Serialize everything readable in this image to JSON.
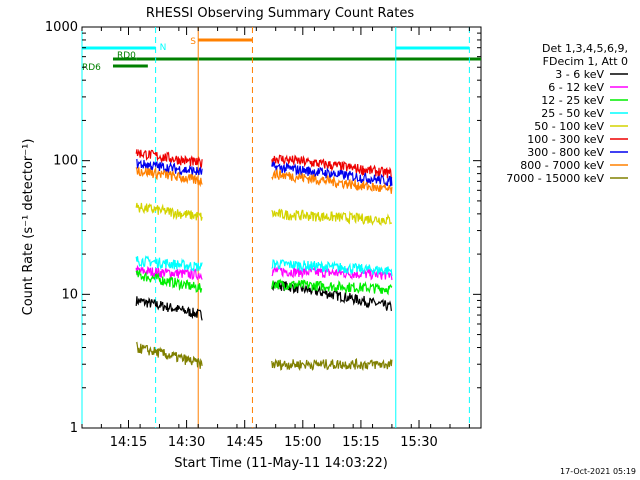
{
  "chart_data": {
    "type": "line",
    "title": "RHESSI Observing Summary Count Rates",
    "xlabel": "Start Time (11-May-11 14:03:22)",
    "ylabel": "Count Rate (s⁻¹ detector⁻¹)",
    "y_scale": "log",
    "ylim": [
      1,
      1000
    ],
    "xlim": [
      "14:03",
      "15:46"
    ],
    "y_ticks": [
      {
        "value": 1,
        "label": "1"
      },
      {
        "value": 10,
        "label": "10"
      },
      {
        "value": 100,
        "label": "100"
      },
      {
        "value": 1000,
        "label": "1000"
      }
    ],
    "x_ticks": [
      {
        "value": "14:15",
        "label": "14:15"
      },
      {
        "value": "14:30",
        "label": "14:30"
      },
      {
        "value": "14:45",
        "label": "14:45"
      },
      {
        "value": "15:00",
        "label": "15:00"
      },
      {
        "value": "15:15",
        "label": "15:15"
      },
      {
        "value": "15:30",
        "label": "15:30"
      }
    ],
    "legend": {
      "placement": "right",
      "header": [
        "Det 1,3,4,5,6,9,",
        "FDecim 1, Att 0"
      ],
      "entries": [
        {
          "label": "3 - 6 keV",
          "color": "#000000"
        },
        {
          "label": "6 - 12 keV",
          "color": "#ff00ff"
        },
        {
          "label": "12 - 25 keV",
          "color": "#00ee00"
        },
        {
          "label": "25 - 50 keV",
          "color": "#00ffff"
        },
        {
          "label": "50 - 100 keV",
          "color": "#d4d400"
        },
        {
          "label": "100 - 300 keV",
          "color": "#ee0000"
        },
        {
          "label": "300 - 800 keV",
          "color": "#0000ee"
        },
        {
          "label": "800 - 7000 keV",
          "color": "#ff8000"
        },
        {
          "label": "7000 - 15000 keV",
          "color": "#808000"
        }
      ]
    },
    "segments": [
      {
        "start": "14:17",
        "end": "14:34"
      },
      {
        "start": "14:52",
        "end": "15:23"
      }
    ],
    "series": [
      {
        "name": "3 - 6 keV",
        "color": "#000000",
        "level_seg1": [
          9,
          7
        ],
        "level_seg2": [
          12,
          8
        ]
      },
      {
        "name": "6 - 12 keV",
        "color": "#ff00ff",
        "level_seg1": [
          15,
          14
        ],
        "level_seg2": [
          15,
          14
        ]
      },
      {
        "name": "12 - 25 keV",
        "color": "#00ee00",
        "level_seg1": [
          14,
          11
        ],
        "level_seg2": [
          12,
          11
        ]
      },
      {
        "name": "25 - 50 keV",
        "color": "#00ffff",
        "level_seg1": [
          18,
          16
        ],
        "level_seg2": [
          17,
          15
        ]
      },
      {
        "name": "50 - 100 keV",
        "color": "#d4d400",
        "level_seg1": [
          45,
          38
        ],
        "level_seg2": [
          40,
          36
        ]
      },
      {
        "name": "100 - 300 keV",
        "color": "#ee0000",
        "level_seg1": [
          115,
          95
        ],
        "level_seg2": [
          105,
          80
        ]
      },
      {
        "name": "300 - 800 keV",
        "color": "#0000ee",
        "level_seg1": [
          95,
          82
        ],
        "level_seg2": [
          90,
          70
        ]
      },
      {
        "name": "800 - 7000 keV",
        "color": "#ff8000",
        "level_seg1": [
          85,
          70
        ],
        "level_seg2": [
          80,
          60
        ]
      },
      {
        "name": "7000 - 15000 keV",
        "color": "#808000",
        "level_seg1": [
          4,
          3
        ],
        "level_seg2": [
          3,
          3
        ]
      }
    ],
    "flags": [
      {
        "label": "N",
        "color": "#00ffff",
        "spans": [
          [
            "14:03",
            "14:22"
          ],
          [
            "15:24",
            "15:43"
          ]
        ]
      },
      {
        "label": "S",
        "color": "#ff8000",
        "spans": [
          [
            "14:33",
            "14:47"
          ]
        ]
      },
      {
        "label": "RD0",
        "color": "#008000",
        "spans": [
          [
            "14:11",
            "14:17"
          ],
          [
            "14:17",
            "15:46"
          ]
        ]
      },
      {
        "label": "RD6",
        "color": "#008000",
        "spans": [
          [
            "14:11",
            "14:20"
          ]
        ]
      }
    ],
    "vertical_markers": [
      {
        "time": "14:03",
        "color": "#00ffff",
        "style": "solid"
      },
      {
        "time": "14:22",
        "color": "#00ffff",
        "style": "dashed"
      },
      {
        "time": "14:33",
        "color": "#ff8000",
        "style": "solid"
      },
      {
        "time": "14:47",
        "color": "#ff8000",
        "style": "dashed"
      },
      {
        "time": "15:24",
        "color": "#00ffff",
        "style": "solid"
      },
      {
        "time": "15:43",
        "color": "#00ffff",
        "style": "dashed"
      }
    ],
    "timestamp": "17-Oct-2021 05:19"
  }
}
